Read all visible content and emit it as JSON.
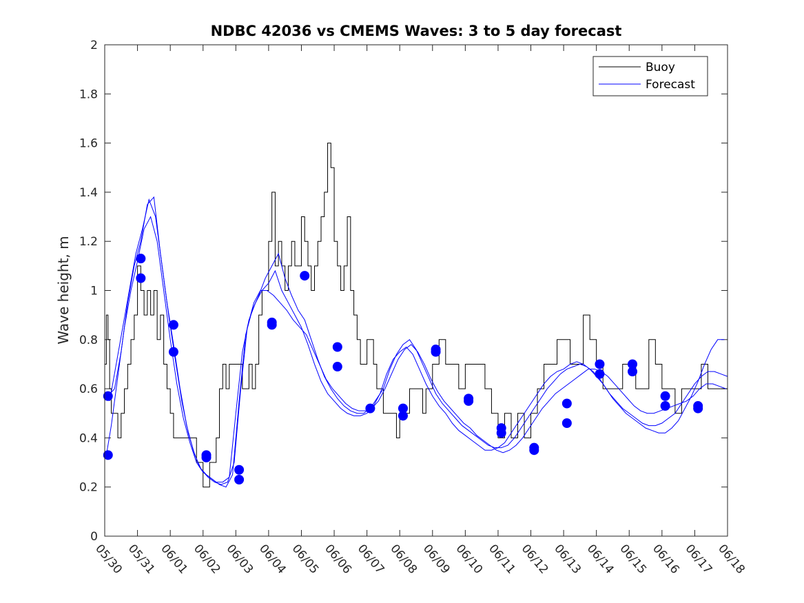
{
  "chart_data": {
    "type": "line",
    "title": "NDBC 42036 vs CMEMS Waves: 3 to 5 day forecast",
    "xlabel": "",
    "ylabel": "Wave height, m",
    "xlim": [
      0,
      19
    ],
    "ylim": [
      0,
      2
    ],
    "x_tick_labels": [
      "05/30",
      "05/31",
      "06/01",
      "06/02",
      "06/03",
      "06/04",
      "06/05",
      "06/06",
      "06/07",
      "06/08",
      "06/09",
      "06/10",
      "06/11",
      "06/12",
      "06/13",
      "06/14",
      "06/15",
      "06/16",
      "06/17",
      "06/18"
    ],
    "y_tick_labels": [
      "0",
      "0.2",
      "0.4",
      "0.6",
      "0.8",
      "1",
      "1.2",
      "1.4",
      "1.6",
      "1.8",
      "2"
    ],
    "y_ticks": [
      0,
      0.2,
      0.4,
      0.6,
      0.8,
      1,
      1.2,
      1.4,
      1.6,
      1.8,
      2
    ],
    "x_unit_note": "x values are days since 05/30 00:00",
    "legend": {
      "placement": "top-right",
      "entries": [
        "Buoy",
        "Forecast"
      ]
    },
    "colors": {
      "buoy": "#000000",
      "forecast": "#0000ff",
      "marker": "#0000ff"
    },
    "buoy": {
      "name": "Buoy",
      "x": [
        0,
        0.05,
        0.1,
        0.15,
        0.2,
        0.3,
        0.4,
        0.5,
        0.6,
        0.7,
        0.8,
        0.9,
        1.0,
        1.1,
        1.2,
        1.3,
        1.4,
        1.5,
        1.6,
        1.7,
        1.8,
        1.9,
        2.0,
        2.1,
        2.2,
        2.3,
        2.4,
        2.5,
        2.6,
        2.8,
        3.0,
        3.2,
        3.4,
        3.5,
        3.6,
        3.7,
        3.8,
        4.0,
        4.2,
        4.3,
        4.4,
        4.5,
        4.6,
        4.7,
        4.8,
        5.0,
        5.1,
        5.2,
        5.3,
        5.4,
        5.5,
        5.6,
        5.7,
        5.8,
        6.0,
        6.1,
        6.2,
        6.3,
        6.4,
        6.5,
        6.6,
        6.7,
        6.8,
        6.9,
        7.0,
        7.1,
        7.2,
        7.3,
        7.4,
        7.5,
        7.6,
        7.7,
        7.8,
        7.9,
        8.0,
        8.1,
        8.2,
        8.3,
        8.4,
        8.5,
        8.6,
        8.7,
        8.8,
        8.9,
        9.0,
        9.1,
        9.2,
        9.3,
        9.4,
        9.5,
        9.6,
        9.7,
        9.8,
        10.0,
        10.2,
        10.4,
        10.6,
        10.8,
        11.0,
        11.2,
        11.4,
        11.6,
        11.8,
        12.0,
        12.2,
        12.4,
        12.6,
        12.8,
        13.0,
        13.2,
        13.4,
        13.6,
        13.8,
        14.0,
        14.2,
        14.4,
        14.6,
        14.8,
        15.0,
        15.2,
        15.4,
        15.6,
        15.8,
        16.0,
        16.2,
        16.4,
        16.6,
        16.8,
        17.0,
        17.2,
        17.4,
        17.6,
        17.8,
        18.0,
        18.2,
        18.4,
        18.6,
        18.8,
        19.0
      ],
      "values": [
        0.7,
        0.9,
        0.8,
        0.6,
        0.5,
        0.5,
        0.4,
        0.5,
        0.6,
        0.7,
        0.8,
        0.9,
        1.1,
        1.0,
        0.9,
        1.0,
        0.9,
        1.0,
        0.8,
        0.9,
        0.7,
        0.6,
        0.5,
        0.4,
        0.4,
        0.4,
        0.4,
        0.4,
        0.4,
        0.3,
        0.2,
        0.3,
        0.4,
        0.6,
        0.7,
        0.6,
        0.7,
        0.7,
        0.6,
        0.6,
        0.7,
        0.6,
        0.7,
        0.9,
        1.0,
        1.2,
        1.4,
        1.1,
        1.2,
        1.1,
        1.0,
        1.1,
        1.2,
        1.1,
        1.3,
        1.2,
        1.1,
        1.0,
        1.1,
        1.2,
        1.3,
        1.4,
        1.6,
        1.5,
        1.2,
        1.1,
        1.0,
        1.1,
        1.3,
        1.0,
        0.9,
        0.8,
        0.7,
        0.7,
        0.8,
        0.8,
        0.7,
        0.6,
        0.6,
        0.5,
        0.5,
        0.5,
        0.5,
        0.4,
        0.5,
        0.5,
        0.5,
        0.6,
        0.6,
        0.6,
        0.6,
        0.5,
        0.6,
        0.7,
        0.8,
        0.7,
        0.7,
        0.6,
        0.7,
        0.7,
        0.7,
        0.6,
        0.5,
        0.4,
        0.5,
        0.4,
        0.5,
        0.4,
        0.5,
        0.6,
        0.7,
        0.7,
        0.8,
        0.8,
        0.7,
        0.7,
        0.9,
        0.8,
        0.7,
        0.6,
        0.6,
        0.6,
        0.7,
        0.7,
        0.6,
        0.6,
        0.8,
        0.7,
        0.6,
        0.6,
        0.5,
        0.6,
        0.6,
        0.6,
        0.7,
        0.6,
        0.6,
        0.6,
        0.6
      ]
    },
    "forecast_series": [
      {
        "x": [
          0.05,
          0.2,
          0.4,
          0.6,
          0.8,
          1.0,
          1.2,
          1.4,
          1.6,
          1.8,
          2.0,
          2.2,
          2.4,
          2.6,
          2.8,
          3.0,
          3.2,
          3.4,
          3.6,
          3.8,
          4.0,
          4.2,
          4.4,
          4.6,
          4.8,
          5.0,
          5.2,
          5.4,
          5.6,
          5.8,
          6.0,
          6.2,
          6.4,
          6.6,
          6.8,
          7.0,
          7.2,
          7.4,
          7.6,
          7.8,
          8.0,
          8.2,
          8.4,
          8.6,
          8.8,
          9.0,
          9.2,
          9.4,
          9.6,
          9.8,
          10.0,
          10.2,
          10.4,
          10.6,
          10.8,
          11.0,
          11.2,
          11.4,
          11.6,
          11.8,
          12.0,
          12.2,
          12.4,
          12.6,
          12.8,
          13.0,
          13.2,
          13.4,
          13.6,
          13.8,
          14.0,
          14.2,
          14.4,
          14.6,
          14.8,
          15.0,
          15.2,
          15.4,
          15.6,
          15.8,
          16.0,
          16.2,
          16.4,
          16.6,
          16.8,
          17.0,
          17.2,
          17.4,
          17.6,
          17.8,
          18.0,
          18.2,
          18.4,
          18.6,
          18.8,
          19.0
        ],
        "values": [
          0.33,
          0.45,
          0.65,
          0.85,
          1.0,
          1.12,
          1.25,
          1.3,
          1.2,
          1.0,
          0.8,
          0.62,
          0.48,
          0.38,
          0.3,
          0.26,
          0.24,
          0.22,
          0.22,
          0.24,
          0.5,
          0.75,
          0.88,
          0.95,
          1.0,
          1.03,
          1.08,
          1.0,
          0.95,
          0.9,
          0.85,
          0.78,
          0.7,
          0.63,
          0.58,
          0.55,
          0.52,
          0.5,
          0.49,
          0.49,
          0.5,
          0.53,
          0.58,
          0.66,
          0.72,
          0.75,
          0.77,
          0.74,
          0.68,
          0.62,
          0.57,
          0.53,
          0.5,
          0.46,
          0.43,
          0.41,
          0.39,
          0.37,
          0.35,
          0.35,
          0.36,
          0.38,
          0.42,
          0.46,
          0.5,
          0.54,
          0.58,
          0.62,
          0.65,
          0.67,
          0.68,
          0.7,
          0.71,
          0.7,
          0.68,
          0.65,
          0.62,
          0.58,
          0.55,
          0.52,
          0.5,
          0.48,
          0.46,
          0.45,
          0.45,
          0.46,
          0.48,
          0.5,
          0.54,
          0.58,
          0.62,
          0.65,
          0.67,
          0.67,
          0.66,
          0.65
        ]
      },
      {
        "x": [
          0.1,
          0.3,
          0.5,
          0.7,
          0.9,
          1.1,
          1.3,
          1.5,
          1.7,
          1.9,
          2.1,
          2.3,
          2.5,
          2.7,
          2.9,
          3.1,
          3.3,
          3.5,
          3.7,
          3.9,
          4.1,
          4.3,
          4.5,
          4.7,
          4.9,
          5.1,
          5.3,
          5.5,
          5.7,
          5.9,
          6.1,
          6.3,
          6.5,
          6.7,
          6.9,
          7.1,
          7.3,
          7.5,
          7.7,
          7.9,
          8.1,
          8.3,
          8.5,
          8.7,
          8.9,
          9.1,
          9.3,
          9.5,
          9.7,
          9.9,
          10.1,
          10.3,
          10.5,
          10.7,
          10.9,
          11.1,
          11.3,
          11.5,
          11.7,
          11.9,
          12.1,
          12.3,
          12.5,
          12.7,
          12.9,
          13.1,
          13.3,
          13.5,
          13.7,
          13.9,
          14.1,
          14.3,
          14.5,
          14.7,
          14.9,
          15.1,
          15.3,
          15.5,
          15.7,
          15.9,
          16.1,
          16.3,
          16.5,
          16.7,
          16.9,
          17.1,
          17.3,
          17.5,
          17.7,
          17.9,
          18.1,
          18.3,
          18.5,
          18.7,
          18.9
        ],
        "values": [
          0.57,
          0.6,
          0.75,
          0.95,
          1.1,
          1.2,
          1.35,
          1.38,
          1.15,
          0.95,
          0.78,
          0.6,
          0.45,
          0.35,
          0.28,
          0.25,
          0.23,
          0.21,
          0.2,
          0.25,
          0.55,
          0.82,
          0.92,
          0.98,
          1.05,
          1.1,
          1.15,
          1.05,
          0.98,
          0.92,
          0.88,
          0.8,
          0.72,
          0.65,
          0.6,
          0.56,
          0.53,
          0.51,
          0.5,
          0.5,
          0.52,
          0.56,
          0.6,
          0.68,
          0.74,
          0.78,
          0.8,
          0.76,
          0.7,
          0.64,
          0.58,
          0.54,
          0.51,
          0.48,
          0.45,
          0.43,
          0.41,
          0.39,
          0.37,
          0.36,
          0.36,
          0.37,
          0.4,
          0.44,
          0.48,
          0.52,
          0.56,
          0.6,
          0.63,
          0.66,
          0.68,
          0.69,
          0.7,
          0.69,
          0.67,
          0.64,
          0.6,
          0.56,
          0.53,
          0.5,
          0.48,
          0.46,
          0.44,
          0.43,
          0.42,
          0.42,
          0.44,
          0.47,
          0.52,
          0.57,
          0.63,
          0.7,
          0.76,
          0.8,
          0.8
        ]
      },
      {
        "x": [
          0.15,
          0.35,
          0.55,
          0.75,
          0.95,
          1.15,
          1.35,
          1.55,
          1.75,
          1.95,
          2.15,
          2.35,
          2.55,
          2.75,
          2.95,
          3.15,
          3.35,
          3.55,
          3.75,
          3.95,
          4.15,
          4.35,
          4.55,
          4.75,
          4.95,
          5.15,
          5.35,
          5.55,
          5.75,
          5.95,
          6.15,
          6.35,
          6.55,
          6.75,
          6.95,
          7.15,
          7.35,
          7.55,
          7.75,
          7.95,
          8.15,
          8.35,
          8.55,
          8.75,
          8.95,
          9.15,
          9.35,
          9.55,
          9.75,
          9.95,
          10.15,
          10.35,
          10.55,
          10.75,
          10.95,
          11.15,
          11.35,
          11.55,
          11.75,
          11.95,
          12.15,
          12.35,
          12.55,
          12.75,
          12.95,
          13.15,
          13.35,
          13.55,
          13.75,
          13.95,
          14.15,
          14.35,
          14.55,
          14.75,
          14.95,
          15.15,
          15.35,
          15.55,
          15.75,
          15.95,
          16.15,
          16.35,
          16.55,
          16.75,
          16.95,
          17.15,
          17.35,
          17.55,
          17.75,
          17.95,
          18.15,
          18.35,
          18.55,
          18.75,
          18.95
        ],
        "values": [
          0.55,
          0.7,
          0.85,
          1.0,
          1.15,
          1.25,
          1.37,
          1.3,
          1.1,
          0.9,
          0.72,
          0.55,
          0.42,
          0.33,
          0.27,
          0.24,
          0.22,
          0.21,
          0.22,
          0.3,
          0.6,
          0.85,
          0.95,
          1.0,
          1.0,
          0.98,
          0.95,
          0.92,
          0.88,
          0.85,
          0.82,
          0.76,
          0.7,
          0.64,
          0.6,
          0.57,
          0.54,
          0.52,
          0.51,
          0.51,
          0.52,
          0.55,
          0.6,
          0.66,
          0.72,
          0.76,
          0.78,
          0.75,
          0.7,
          0.64,
          0.59,
          0.55,
          0.52,
          0.49,
          0.46,
          0.44,
          0.41,
          0.39,
          0.37,
          0.35,
          0.34,
          0.35,
          0.37,
          0.4,
          0.44,
          0.48,
          0.52,
          0.55,
          0.58,
          0.6,
          0.62,
          0.64,
          0.66,
          0.68,
          0.68,
          0.67,
          0.65,
          0.62,
          0.59,
          0.56,
          0.53,
          0.51,
          0.5,
          0.5,
          0.51,
          0.52,
          0.53,
          0.54,
          0.55,
          0.57,
          0.6,
          0.62,
          0.62,
          0.61,
          0.6
        ]
      }
    ],
    "forecast_markers": [
      {
        "x": 0.1,
        "y": 0.57
      },
      {
        "x": 0.1,
        "y": 0.33
      },
      {
        "x": 1.1,
        "y": 1.13
      },
      {
        "x": 1.1,
        "y": 1.05
      },
      {
        "x": 2.1,
        "y": 0.86
      },
      {
        "x": 2.1,
        "y": 0.75
      },
      {
        "x": 3.1,
        "y": 0.33
      },
      {
        "x": 3.1,
        "y": 0.32
      },
      {
        "x": 4.1,
        "y": 0.27
      },
      {
        "x": 4.1,
        "y": 0.23
      },
      {
        "x": 5.1,
        "y": 0.87
      },
      {
        "x": 5.1,
        "y": 0.86
      },
      {
        "x": 6.1,
        "y": 1.06
      },
      {
        "x": 7.1,
        "y": 0.77
      },
      {
        "x": 7.1,
        "y": 0.69
      },
      {
        "x": 8.1,
        "y": 0.52
      },
      {
        "x": 9.1,
        "y": 0.52
      },
      {
        "x": 9.1,
        "y": 0.49
      },
      {
        "x": 10.1,
        "y": 0.76
      },
      {
        "x": 10.1,
        "y": 0.75
      },
      {
        "x": 11.1,
        "y": 0.56
      },
      {
        "x": 11.1,
        "y": 0.55
      },
      {
        "x": 12.1,
        "y": 0.44
      },
      {
        "x": 12.1,
        "y": 0.42
      },
      {
        "x": 13.1,
        "y": 0.36
      },
      {
        "x": 13.1,
        "y": 0.35
      },
      {
        "x": 14.1,
        "y": 0.54
      },
      {
        "x": 14.1,
        "y": 0.46
      },
      {
        "x": 15.1,
        "y": 0.7
      },
      {
        "x": 15.1,
        "y": 0.66
      },
      {
        "x": 16.1,
        "y": 0.7
      },
      {
        "x": 16.1,
        "y": 0.67
      },
      {
        "x": 17.1,
        "y": 0.57
      },
      {
        "x": 17.1,
        "y": 0.53
      },
      {
        "x": 18.1,
        "y": 0.53
      },
      {
        "x": 18.1,
        "y": 0.52
      }
    ]
  }
}
